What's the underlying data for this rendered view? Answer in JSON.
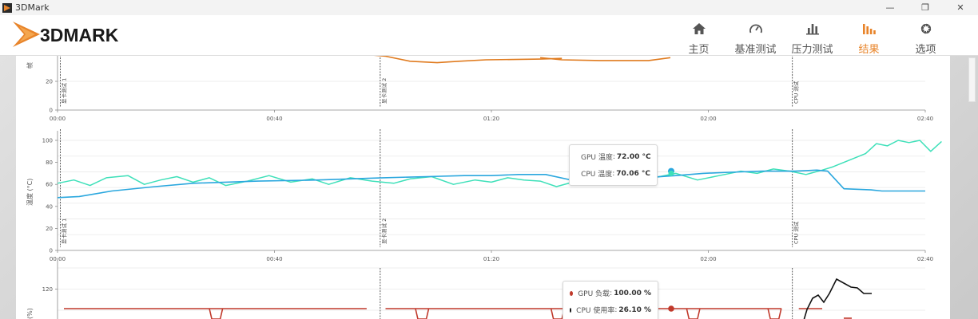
{
  "window": {
    "title": "3DMark",
    "controls": [
      "—",
      "❐",
      "✕"
    ]
  },
  "brand": {
    "logo_text": "3DMARK"
  },
  "nav": [
    {
      "label": "主页",
      "icon": "home-icon"
    },
    {
      "label": "基准测试",
      "icon": "gauge-icon"
    },
    {
      "label": "压力测试",
      "icon": "bar-chart-icon"
    },
    {
      "label": "结果",
      "icon": "results-icon",
      "active": true
    },
    {
      "label": "选项",
      "icon": "gear-icon"
    }
  ],
  "colors": {
    "accent": "#e8842a",
    "gpu_temp": "#2aa7de",
    "cpu_temp": "#3ee0b9",
    "gpu_load": "#c0392b",
    "cpu_usage": "#111111",
    "frame_rate": "#e07b1f"
  },
  "chart_data": [
    {
      "type": "line",
      "ylabel": "帧",
      "yticks": [
        "0",
        "20"
      ],
      "xticks": [
        "00:00",
        "00:40",
        "01:20",
        "02:00",
        "02:40"
      ],
      "markers": [
        "显卡测试 1",
        "显卡测试 2",
        "CPU 测试"
      ],
      "series": [
        {
          "x": [
            115,
            121,
            130,
            140,
            148,
            158,
            178,
            186
          ],
          "y": [
            38.5,
            37.5,
            34,
            33,
            34,
            35,
            35.5,
            36
          ]
        },
        {
          "x": [
            178,
            186,
            200,
            210,
            218,
            226
          ],
          "y": [
            36.5,
            35,
            34.5,
            34.5,
            34.5,
            36.5
          ]
        }
      ]
    },
    {
      "type": "line",
      "ylabel": "温度 (°C)",
      "ylim": [
        0,
        100
      ],
      "yticks": [
        "0",
        "20",
        "40",
        "60",
        "80",
        "100"
      ],
      "xticks": [
        "00:00",
        "00:40",
        "01:20",
        "02:00",
        "02:40"
      ],
      "markers": [
        "显卡测试 1",
        "显卡测试 2",
        "CPU 测试"
      ],
      "series": [
        {
          "name": "GPU 温度",
          "x": [
            0,
            8,
            20,
            36,
            50,
            74,
            96,
            120,
            136,
            150,
            160,
            170,
            180,
            193,
            204,
            216,
            228,
            238,
            248,
            260,
            272,
            280,
            284,
            290,
            300,
            304,
            320
          ],
          "y": [
            48,
            49,
            54,
            58,
            61,
            63,
            64,
            66,
            67,
            68,
            68,
            69,
            69,
            62,
            64,
            66,
            68,
            70,
            71,
            72,
            72,
            73,
            72,
            56,
            55,
            54,
            54
          ]
        },
        {
          "name": "CPU 温度",
          "x": [
            0,
            6,
            12,
            18,
            26,
            32,
            38,
            44,
            50,
            56,
            62,
            70,
            78,
            86,
            94,
            100,
            108,
            116,
            124,
            130,
            138,
            146,
            154,
            160,
            166,
            172,
            178,
            184,
            190,
            193,
            198,
            204,
            212,
            220,
            228,
            236,
            244,
            252,
            258,
            264,
            270,
            276,
            282,
            286,
            290,
            294,
            298,
            302,
            306,
            310,
            314,
            318,
            322,
            326
          ],
          "y": [
            61,
            64,
            59,
            66,
            68,
            60,
            64,
            67,
            62,
            66,
            59,
            63,
            68,
            62,
            65,
            60,
            66,
            63,
            61,
            65,
            67,
            60,
            64,
            62,
            66,
            64,
            63,
            58,
            62,
            64,
            67,
            63,
            60,
            66,
            70,
            64,
            68,
            72,
            70,
            74,
            72,
            69,
            73,
            76,
            80,
            84,
            88,
            97,
            95,
            100,
            98,
            100,
            90,
            99
          ]
        }
      ],
      "tooltip": [
        {
          "label": "GPU 温度",
          "value": "72.00 °C"
        },
        {
          "label": "CPU 温度",
          "value": "70.06 °C"
        }
      ]
    },
    {
      "type": "line",
      "ylabel": "(%)",
      "yticks": [
        "120"
      ],
      "xticks": [],
      "markers": [],
      "series": [
        {
          "name": "GPU 负载",
          "x": [
            2,
            190,
            192,
            300,
            304,
            310
          ],
          "y": [
            100,
            100,
            100,
            100,
            100,
            100
          ]
        },
        {
          "name": "CPU 使用率",
          "x": [
            285,
            290,
            295,
            300,
            305,
            310,
            315,
            320,
            325
          ],
          "y": [
            60,
            78,
            110,
            96,
            140,
            130,
            126,
            121,
            120
          ]
        }
      ],
      "tooltip": [
        {
          "label": "GPU 负载",
          "value": "100.00 %"
        },
        {
          "label": "CPU 使用率",
          "value": "26.10 %"
        }
      ]
    }
  ]
}
